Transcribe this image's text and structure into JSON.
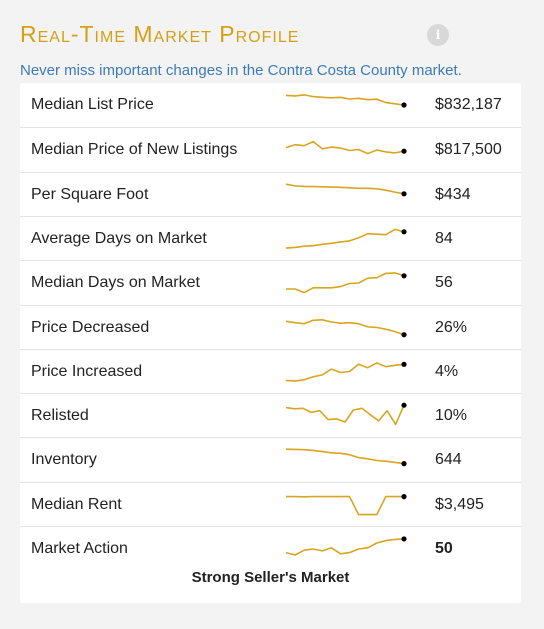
{
  "header": {
    "title": "Real-Time Market Profile",
    "info_icon": "info-icon",
    "subtitle": "Never miss important changes in the Contra Costa County market."
  },
  "colors": {
    "title": "#d3a017",
    "subtitle": "#3c7bb8",
    "sparkline": "#d9a520",
    "endpoint": "#000000"
  },
  "metrics": [
    {
      "label": "Median List Price",
      "value": "$832,187",
      "trend": [
        0.9,
        0.88,
        0.92,
        0.85,
        0.82,
        0.8,
        0.82,
        0.75,
        0.78,
        0.72,
        0.74,
        0.6,
        0.55,
        0.5
      ]
    },
    {
      "label": "Median Price of New Listings",
      "value": "$817,500",
      "trend": [
        0.6,
        0.72,
        0.68,
        0.85,
        0.55,
        0.62,
        0.58,
        0.48,
        0.52,
        0.35,
        0.5,
        0.42,
        0.38,
        0.45
      ]
    },
    {
      "label": "Per Square Foot",
      "value": "$434",
      "trend": [
        0.95,
        0.88,
        0.86,
        0.85,
        0.84,
        0.83,
        0.82,
        0.8,
        0.78,
        0.78,
        0.76,
        0.7,
        0.62,
        0.55
      ]
    },
    {
      "label": "Average Days on Market",
      "value": "84",
      "trend": [
        0.12,
        0.15,
        0.2,
        0.22,
        0.28,
        0.32,
        0.38,
        0.42,
        0.55,
        0.72,
        0.7,
        0.68,
        0.9,
        0.8
      ]
    },
    {
      "label": "Median Days on Market",
      "value": "56",
      "trend": [
        0.25,
        0.25,
        0.1,
        0.3,
        0.3,
        0.3,
        0.35,
        0.48,
        0.5,
        0.7,
        0.72,
        0.9,
        0.92,
        0.8
      ]
    },
    {
      "label": "Price Decreased",
      "value": "26%",
      "trend": [
        0.78,
        0.72,
        0.68,
        0.82,
        0.84,
        0.75,
        0.7,
        0.72,
        0.68,
        0.55,
        0.52,
        0.45,
        0.35,
        0.22
      ]
    },
    {
      "label": "Price Increased",
      "value": "4%",
      "trend": [
        0.15,
        0.12,
        0.18,
        0.3,
        0.38,
        0.62,
        0.48,
        0.52,
        0.82,
        0.68,
        0.88,
        0.72,
        0.78,
        0.82
      ]
    },
    {
      "label": "Relisted",
      "value": "10%",
      "trend": [
        0.85,
        0.8,
        0.82,
        0.65,
        0.72,
        0.35,
        0.38,
        0.25,
        0.75,
        0.82,
        0.55,
        0.3,
        0.72,
        0.15,
        0.95
      ]
    },
    {
      "label": "Inventory",
      "value": "644",
      "trend": [
        0.95,
        0.94,
        0.93,
        0.9,
        0.85,
        0.8,
        0.78,
        0.72,
        0.6,
        0.55,
        0.48,
        0.45,
        0.4,
        0.35
      ]
    },
    {
      "label": "Median Rent",
      "value": "$3,495",
      "trend": [
        0.85,
        0.85,
        0.84,
        0.85,
        0.85,
        0.85,
        0.85,
        0.85,
        0.1,
        0.1,
        0.1,
        0.85,
        0.85,
        0.85
      ]
    },
    {
      "label": "Market Action",
      "value": "50",
      "value_bold": true,
      "trend": [
        0.35,
        0.25,
        0.45,
        0.5,
        0.42,
        0.55,
        0.3,
        0.35,
        0.5,
        0.55,
        0.75,
        0.85,
        0.9,
        0.92
      ]
    }
  ],
  "verdict": "Strong Seller's Market"
}
